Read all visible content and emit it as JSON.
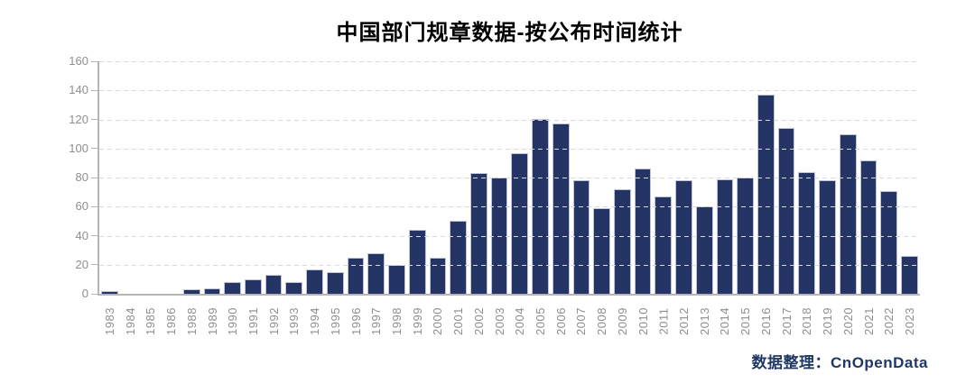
{
  "chart_data": {
    "type": "bar",
    "title": "中国部门规章数据-按公布时间统计",
    "xlabel": "",
    "ylabel": "",
    "categories": [
      "1983",
      "1984",
      "1985",
      "1986",
      "1988",
      "1989",
      "1990",
      "1991",
      "1992",
      "1993",
      "1994",
      "1995",
      "1996",
      "1997",
      "1998",
      "1999",
      "2000",
      "2001",
      "2002",
      "2003",
      "2004",
      "2005",
      "2006",
      "2007",
      "2008",
      "2009",
      "2010",
      "2011",
      "2012",
      "2013",
      "2014",
      "2015",
      "2016",
      "2017",
      "2018",
      "2019",
      "2020",
      "2021",
      "2022",
      "2023"
    ],
    "values": [
      2,
      0,
      0,
      0,
      3,
      4,
      8,
      10,
      13,
      8,
      17,
      15,
      25,
      28,
      20,
      44,
      25,
      50,
      83,
      80,
      97,
      120,
      117,
      78,
      59,
      72,
      86,
      67,
      78,
      60,
      79,
      80,
      137,
      114,
      84,
      78,
      110,
      92,
      71,
      26
    ],
    "ylim": [
      0,
      160
    ],
    "yticks": [
      0,
      20,
      40,
      60,
      80,
      100,
      120,
      140,
      160
    ],
    "grid": "horizontal-dashed",
    "legend_position": "none",
    "x_tick_rotation": -90
  },
  "attribution": {
    "label": "数据整理：",
    "source": "CnOpenData"
  },
  "colors": {
    "bar_fill": "#243464",
    "bar_border": "#c0c4d8",
    "gridline": "#d9d9d9",
    "axis": "#b5b5b5",
    "tick_text": "#8e8e8e",
    "title_text": "#000000",
    "attribution_text": "#1f3864"
  }
}
